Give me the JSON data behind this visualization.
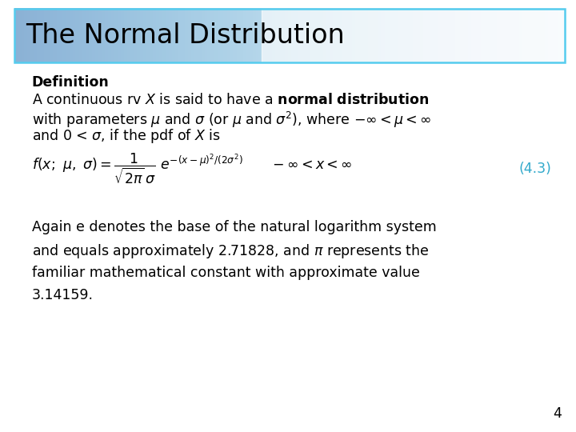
{
  "title": "The Normal Distribution",
  "title_border_color": "#55ccee",
  "title_bg_color": "#cceeff",
  "title_text_color": "#000000",
  "body_bg_color": "#ffffff",
  "page_number": "4",
  "formula_label_color": "#33aacc",
  "font_size_title": 24,
  "font_size_body": 12.5,
  "footer_text1": "Again e denotes the base of the natural logarithm system",
  "footer_text2_a": "and equals approximately 2.71828, and ",
  "footer_text2_b": " represents the",
  "footer_text3": "familiar mathematical constant with approximate value",
  "footer_text4": "3.14159."
}
